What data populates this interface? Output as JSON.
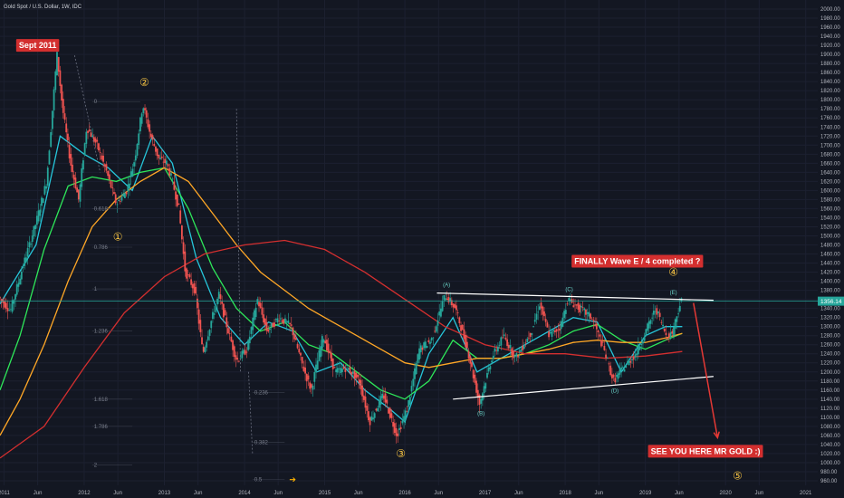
{
  "chart_data": {
    "type": "candlestick",
    "title": "Gold Spot / U.S. Dollar, 1W, IDC",
    "ylim": [
      950,
      2020
    ],
    "xlim": [
      2010.95,
      2021.15
    ],
    "y_ticks": [
      960,
      980,
      1000,
      1020,
      1040,
      1060,
      1080,
      1100,
      1120,
      1140,
      1160,
      1180,
      1200,
      1220,
      1240,
      1260,
      1280,
      1300,
      1320,
      1340,
      1360,
      1380,
      1400,
      1420,
      1440,
      1460,
      1480,
      1500,
      1520,
      1540,
      1560,
      1580,
      1600,
      1620,
      1640,
      1660,
      1680,
      1700,
      1720,
      1740,
      1760,
      1780,
      1800,
      1820,
      1840,
      1860,
      1880,
      1900,
      1920,
      1940,
      1960,
      1980,
      2000
    ],
    "x_ticks": [
      {
        "label": "2011",
        "x": 2011.0
      },
      {
        "label": "Jun",
        "x": 2011.42
      },
      {
        "label": "2012",
        "x": 2012.0
      },
      {
        "label": "Jun",
        "x": 2012.42
      },
      {
        "label": "2013",
        "x": 2013.0
      },
      {
        "label": "Jun",
        "x": 2013.42
      },
      {
        "label": "2014",
        "x": 2014.0
      },
      {
        "label": "Jun",
        "x": 2014.42
      },
      {
        "label": "2015",
        "x": 2015.0
      },
      {
        "label": "Jun",
        "x": 2015.42
      },
      {
        "label": "2016",
        "x": 2016.0
      },
      {
        "label": "Jun",
        "x": 2016.42
      },
      {
        "label": "2017",
        "x": 2017.0
      },
      {
        "label": "Jun",
        "x": 2017.42
      },
      {
        "label": "2018",
        "x": 2018.0
      },
      {
        "label": "Jun",
        "x": 2018.42
      },
      {
        "label": "2019",
        "x": 2019.0
      },
      {
        "label": "Jun",
        "x": 2019.42
      },
      {
        "label": "2020",
        "x": 2020.0
      },
      {
        "label": "Jun",
        "x": 2020.42
      },
      {
        "label": "2021",
        "x": 2021.0
      }
    ],
    "price_path": [
      [
        2010.95,
        1365
      ],
      [
        2011.1,
        1335
      ],
      [
        2011.25,
        1430
      ],
      [
        2011.42,
        1530
      ],
      [
        2011.55,
        1620
      ],
      [
        2011.68,
        1900
      ],
      [
        2011.75,
        1780
      ],
      [
        2011.85,
        1660
      ],
      [
        2011.95,
        1580
      ],
      [
        2012.05,
        1740
      ],
      [
        2012.18,
        1700
      ],
      [
        2012.3,
        1640
      ],
      [
        2012.42,
        1570
      ],
      [
        2012.55,
        1600
      ],
      [
        2012.65,
        1670
      ],
      [
        2012.75,
        1790
      ],
      [
        2012.85,
        1720
      ],
      [
        2012.95,
        1670
      ],
      [
        2013.05,
        1660
      ],
      [
        2013.12,
        1620
      ],
      [
        2013.2,
        1560
      ],
      [
        2013.28,
        1420
      ],
      [
        2013.4,
        1380
      ],
      [
        2013.5,
        1240
      ],
      [
        2013.6,
        1310
      ],
      [
        2013.7,
        1370
      ],
      [
        2013.8,
        1300
      ],
      [
        2013.92,
        1225
      ],
      [
        2014.05,
        1250
      ],
      [
        2014.18,
        1360
      ],
      [
        2014.3,
        1290
      ],
      [
        2014.45,
        1320
      ],
      [
        2014.6,
        1300
      ],
      [
        2014.75,
        1210
      ],
      [
        2014.85,
        1160
      ],
      [
        2015.0,
        1280
      ],
      [
        2015.15,
        1200
      ],
      [
        2015.3,
        1210
      ],
      [
        2015.45,
        1180
      ],
      [
        2015.58,
        1090
      ],
      [
        2015.75,
        1150
      ],
      [
        2015.92,
        1060
      ],
      [
        2016.05,
        1120
      ],
      [
        2016.2,
        1250
      ],
      [
        2016.35,
        1270
      ],
      [
        2016.52,
        1370
      ],
      [
        2016.65,
        1340
      ],
      [
        2016.8,
        1250
      ],
      [
        2016.95,
        1130
      ],
      [
        2017.1,
        1230
      ],
      [
        2017.25,
        1280
      ],
      [
        2017.4,
        1230
      ],
      [
        2017.6,
        1290
      ],
      [
        2017.7,
        1350
      ],
      [
        2017.82,
        1280
      ],
      [
        2017.96,
        1300
      ],
      [
        2018.05,
        1360
      ],
      [
        2018.2,
        1340
      ],
      [
        2018.35,
        1320
      ],
      [
        2018.5,
        1250
      ],
      [
        2018.62,
        1180
      ],
      [
        2018.75,
        1210
      ],
      [
        2018.9,
        1240
      ],
      [
        2019.05,
        1300
      ],
      [
        2019.15,
        1340
      ],
      [
        2019.28,
        1280
      ],
      [
        2019.35,
        1285
      ],
      [
        2019.42,
        1330
      ],
      [
        2019.46,
        1356
      ]
    ],
    "series": [
      {
        "name": "",
        "color": "#26c6da",
        "values": [
          [
            2010.95,
            1350
          ],
          [
            2011.4,
            1480
          ],
          [
            2011.7,
            1720
          ],
          [
            2012.0,
            1680
          ],
          [
            2012.3,
            1650
          ],
          [
            2012.6,
            1600
          ],
          [
            2012.85,
            1720
          ],
          [
            2013.1,
            1660
          ],
          [
            2013.4,
            1450
          ],
          [
            2013.7,
            1320
          ],
          [
            2014.0,
            1260
          ],
          [
            2014.3,
            1310
          ],
          [
            2014.6,
            1290
          ],
          [
            2014.9,
            1200
          ],
          [
            2015.2,
            1220
          ],
          [
            2015.5,
            1160
          ],
          [
            2015.8,
            1120
          ],
          [
            2016.0,
            1090
          ],
          [
            2016.3,
            1240
          ],
          [
            2016.6,
            1320
          ],
          [
            2016.9,
            1200
          ],
          [
            2017.2,
            1230
          ],
          [
            2017.5,
            1260
          ],
          [
            2017.8,
            1290
          ],
          [
            2018.1,
            1320
          ],
          [
            2018.4,
            1310
          ],
          [
            2018.7,
            1200
          ],
          [
            2019.0,
            1280
          ],
          [
            2019.25,
            1300
          ],
          [
            2019.46,
            1300
          ]
        ]
      },
      {
        "name": "",
        "color": "#2ee85a",
        "values": [
          [
            2010.95,
            1160
          ],
          [
            2011.2,
            1280
          ],
          [
            2011.5,
            1470
          ],
          [
            2011.8,
            1610
          ],
          [
            2012.1,
            1630
          ],
          [
            2012.4,
            1620
          ],
          [
            2012.7,
            1640
          ],
          [
            2013.0,
            1650
          ],
          [
            2013.3,
            1560
          ],
          [
            2013.6,
            1430
          ],
          [
            2013.9,
            1340
          ],
          [
            2014.2,
            1290
          ],
          [
            2014.5,
            1310
          ],
          [
            2014.8,
            1260
          ],
          [
            2015.1,
            1240
          ],
          [
            2015.4,
            1200
          ],
          [
            2015.7,
            1160
          ],
          [
            2016.0,
            1140
          ],
          [
            2016.3,
            1180
          ],
          [
            2016.6,
            1270
          ],
          [
            2016.9,
            1230
          ],
          [
            2017.2,
            1230
          ],
          [
            2017.5,
            1240
          ],
          [
            2017.8,
            1260
          ],
          [
            2018.1,
            1290
          ],
          [
            2018.4,
            1305
          ],
          [
            2018.7,
            1270
          ],
          [
            2019.0,
            1250
          ],
          [
            2019.25,
            1270
          ],
          [
            2019.46,
            1285
          ]
        ]
      },
      {
        "name": "",
        "color": "#ffa726",
        "values": [
          [
            2010.95,
            1060
          ],
          [
            2011.2,
            1140
          ],
          [
            2011.5,
            1260
          ],
          [
            2011.8,
            1400
          ],
          [
            2012.1,
            1520
          ],
          [
            2012.4,
            1580
          ],
          [
            2012.7,
            1620
          ],
          [
            2013.0,
            1650
          ],
          [
            2013.3,
            1620
          ],
          [
            2013.6,
            1550
          ],
          [
            2013.9,
            1480
          ],
          [
            2014.2,
            1420
          ],
          [
            2014.5,
            1380
          ],
          [
            2014.8,
            1340
          ],
          [
            2015.1,
            1310
          ],
          [
            2015.4,
            1280
          ],
          [
            2015.7,
            1250
          ],
          [
            2016.0,
            1220
          ],
          [
            2016.3,
            1210
          ],
          [
            2016.6,
            1220
          ],
          [
            2016.9,
            1230
          ],
          [
            2017.2,
            1230
          ],
          [
            2017.5,
            1240
          ],
          [
            2017.8,
            1250
          ],
          [
            2018.1,
            1265
          ],
          [
            2018.4,
            1270
          ],
          [
            2018.7,
            1265
          ],
          [
            2019.0,
            1265
          ],
          [
            2019.25,
            1275
          ],
          [
            2019.46,
            1285
          ]
        ]
      },
      {
        "name": "",
        "color": "#d32f2f",
        "values": [
          [
            2010.95,
            1010
          ],
          [
            2011.5,
            1080
          ],
          [
            2012.0,
            1210
          ],
          [
            2012.5,
            1330
          ],
          [
            2013.0,
            1410
          ],
          [
            2013.5,
            1460
          ],
          [
            2014.0,
            1480
          ],
          [
            2014.5,
            1490
          ],
          [
            2015.0,
            1470
          ],
          [
            2015.5,
            1420
          ],
          [
            2016.0,
            1360
          ],
          [
            2016.5,
            1300
          ],
          [
            2017.0,
            1260
          ],
          [
            2017.5,
            1240
          ],
          [
            2018.0,
            1240
          ],
          [
            2018.5,
            1230
          ],
          [
            2019.0,
            1235
          ],
          [
            2019.46,
            1245
          ]
        ]
      }
    ],
    "current_price": {
      "label": "1356.14",
      "value": 1356
    },
    "current_price_line": {
      "value": 1356,
      "x_from": 2010.95,
      "x_to": 2021.15
    },
    "triangle_lines": [
      {
        "from": [
          2016.4,
          1374
        ],
        "to": [
          2019.85,
          1358
        ]
      },
      {
        "from": [
          2016.6,
          1140
        ],
        "to": [
          2019.85,
          1190
        ]
      }
    ],
    "projection_arrow": {
      "from": [
        2019.6,
        1352
      ],
      "to": [
        2019.9,
        1055
      ]
    },
    "trend_dotted_lines": [
      {
        "from": [
          2011.88,
          1898
        ],
        "to": [
          2012.2,
          1640
        ]
      },
      {
        "from": [
          2013.9,
          1780
        ],
        "to": [
          2013.95,
          1200
        ]
      },
      {
        "from": [
          2014.05,
          1200
        ],
        "to": [
          2014.1,
          1020
        ]
      }
    ],
    "fib_left": [
      {
        "label": "0",
        "value": 1796,
        "x_from": 2012.1,
        "x_to": 2012.7
      },
      {
        "label": "0.618",
        "value": 1560,
        "x_from": 2012.1,
        "x_to": 2012.6
      },
      {
        "label": "0.786",
        "value": 1475,
        "x_from": 2012.1,
        "x_to": 2012.6
      },
      {
        "label": "1",
        "value": 1383,
        "x_from": 2012.1,
        "x_to": 2012.6
      },
      {
        "label": "1.236",
        "value": 1290,
        "x_from": 2012.1,
        "x_to": 2012.6
      },
      {
        "label": "1.618",
        "value": 1140,
        "x_from": 2012.1,
        "x_to": 2012.6
      },
      {
        "label": "1.786",
        "value": 1080,
        "x_from": 2012.1,
        "x_to": 2012.6
      },
      {
        "label": "2",
        "value": 995,
        "x_from": 2012.1,
        "x_to": 2012.6
      }
    ],
    "fib_mid": [
      {
        "label": "0.236",
        "value": 1155,
        "x_from": 2014.1,
        "x_to": 2014.5
      },
      {
        "label": "0.382",
        "value": 1045,
        "x_from": 2014.1,
        "x_to": 2014.5
      },
      {
        "label": "0.5",
        "value": 963,
        "x_from": 2014.1,
        "x_to": 2014.5
      }
    ],
    "wave_labels": [
      {
        "label": "①",
        "x": 2012.42,
        "y": 1490,
        "kind": "main"
      },
      {
        "label": "②",
        "x": 2012.75,
        "y": 1830,
        "kind": "main"
      },
      {
        "label": "③",
        "x": 2015.95,
        "y": 1012,
        "kind": "main"
      },
      {
        "label": "④",
        "x": 2019.35,
        "y": 1412,
        "kind": "main"
      },
      {
        "label": "⑤",
        "x": 2020.15,
        "y": 963,
        "kind": "main"
      },
      {
        "label": "(A)",
        "x": 2016.52,
        "y": 1388,
        "kind": "sub"
      },
      {
        "label": "(B)",
        "x": 2016.95,
        "y": 1105,
        "kind": "sub"
      },
      {
        "label": "(C)",
        "x": 2018.05,
        "y": 1378,
        "kind": "sub"
      },
      {
        "label": "(D)",
        "x": 2018.62,
        "y": 1155,
        "kind": "sub"
      },
      {
        "label": "(E)",
        "x": 2019.35,
        "y": 1371,
        "kind": "sub"
      }
    ],
    "annotations": [
      {
        "text": "Sept 2011",
        "x": 2011.42,
        "y": 1920,
        "bg": "#d32f2f"
      },
      {
        "text": "FINALLY Wave E / 4 completed ?",
        "x": 2018.9,
        "y": 1444,
        "bg": "#d32f2f"
      },
      {
        "text": "SEE YOU HERE MR GOLD :)",
        "x": 2019.75,
        "y": 1025,
        "bg": "#d32f2f"
      }
    ],
    "event_marker": {
      "label": "➔",
      "x": 2014.6,
      "y": 963,
      "color": "#ffb300"
    }
  }
}
